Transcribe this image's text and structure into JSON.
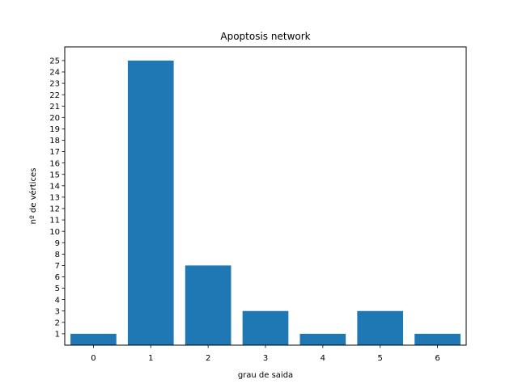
{
  "chart_data": {
    "type": "bar",
    "title": "Apoptosis network",
    "xlabel": "grau de saida",
    "ylabel": "nº de vértices",
    "categories": [
      "0",
      "1",
      "2",
      "3",
      "4",
      "5",
      "6"
    ],
    "x": [
      0,
      1,
      2,
      3,
      4,
      5,
      6
    ],
    "values": [
      1,
      25,
      7,
      3,
      1,
      3,
      1
    ],
    "xlim": [
      -0.5,
      6.5
    ],
    "ylim": [
      0,
      26.2
    ],
    "y_ticks": [
      1,
      2,
      3,
      4,
      5,
      6,
      7,
      8,
      9,
      10,
      11,
      12,
      13,
      14,
      15,
      16,
      17,
      18,
      19,
      20,
      21,
      22,
      23,
      24,
      25
    ],
    "grid": false,
    "bar_color": "#1f77b4"
  }
}
